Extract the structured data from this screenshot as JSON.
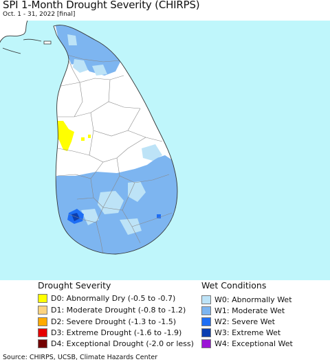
{
  "header": {
    "title": "SPI 1-Month Drought Severity (CHIRPS)",
    "subtitle": "Oct. 1 - 31, 2022 [final]"
  },
  "colors": {
    "sea": "#bff6fb",
    "land": "#ffffff",
    "neighbor_land": "#ffffff",
    "boundary": "#888888",
    "coast": "#333333"
  },
  "legend": {
    "drought": {
      "title": "Drought Severity",
      "items": [
        {
          "label": "D0: Abnormally Dry (-0.5 to -0.7)",
          "color": "#ffff00"
        },
        {
          "label": "D1: Moderate Drought (-0.8 to -1.2)",
          "color": "#fcd37f"
        },
        {
          "label": "D2: Severe Drought (-1.3 to -1.5)",
          "color": "#ffaa00"
        },
        {
          "label": "D3: Extreme Drought (-1.6 to -1.9)",
          "color": "#e60000"
        },
        {
          "label": "D4: Exceptional Drought (-2.0 or less)",
          "color": "#730000"
        }
      ]
    },
    "wet": {
      "title": "Wet Conditions",
      "items": [
        {
          "label": "W0: Abnormally Wet",
          "color": "#bde3f7"
        },
        {
          "label": "W1: Moderate Wet",
          "color": "#7db5f0"
        },
        {
          "label": "W2: Severe Wet",
          "color": "#1e6ef5"
        },
        {
          "label": "W3: Extreme Wet",
          "color": "#0b3eb0"
        },
        {
          "label": "W4: Exceptional Wet",
          "color": "#9b14d6"
        }
      ]
    }
  },
  "footer": {
    "source": "Source: CHIRPS, UCSB, Climate Hazards Center"
  }
}
